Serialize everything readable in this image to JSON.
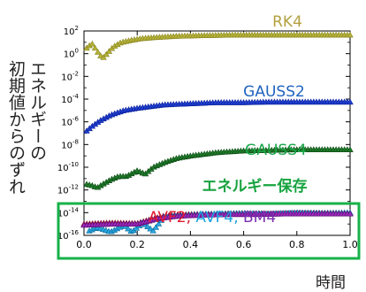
{
  "chart_data": {
    "type": "scatter",
    "x_range": [
      0,
      1
    ],
    "ylim_exp": [
      -16,
      2
    ],
    "log_y": true,
    "xlabel": "時間",
    "ylabel_lines": [
      "エネルギーの",
      "初期値からのずれ"
    ],
    "x_ticks": [
      "0.0",
      "0.2",
      "0.4",
      "0.6",
      "0.8",
      "1.0"
    ],
    "y_ticks": [
      {
        "e": 2,
        "label": "10",
        "sup": "2"
      },
      {
        "e": 0,
        "label": "10",
        "sup": "0"
      },
      {
        "e": -2,
        "label": "10",
        "sup": "-2"
      },
      {
        "e": -4,
        "label": "10",
        "sup": "-4"
      },
      {
        "e": -6,
        "label": "10",
        "sup": "-6"
      },
      {
        "e": -8,
        "label": "10",
        "sup": "-8"
      },
      {
        "e": -10,
        "label": "10",
        "sup": "-10"
      },
      {
        "e": -12,
        "label": "10",
        "sup": "-12"
      },
      {
        "e": -14,
        "label": "10",
        "sup": "-14"
      },
      {
        "e": -16,
        "label": "10",
        "sup": "-16"
      }
    ],
    "series": [
      {
        "name": "RK4",
        "color": "#b5b23a",
        "edge": "#8a8620",
        "marker": "triangle",
        "points": [
          [
            0.01,
            0.5
          ],
          [
            0.03,
            0.9
          ],
          [
            0.05,
            0.2
          ],
          [
            0.07,
            -0.4
          ],
          [
            0.09,
            0.1
          ],
          [
            0.11,
            0.6
          ],
          [
            0.14,
            1.0
          ],
          [
            0.18,
            1.2
          ],
          [
            0.22,
            1.35
          ],
          [
            0.28,
            1.45
          ],
          [
            0.35,
            1.55
          ],
          [
            0.45,
            1.6
          ],
          [
            0.55,
            1.65
          ],
          [
            0.65,
            1.65
          ],
          [
            0.75,
            1.65
          ],
          [
            0.85,
            1.65
          ],
          [
            0.95,
            1.65
          ],
          [
            1.0,
            1.65
          ]
        ]
      },
      {
        "name": "GAUSS2",
        "color": "#1f3fcf",
        "edge": "#0a1f9a",
        "marker": "triangle",
        "points": [
          [
            0.01,
            -6.8
          ],
          [
            0.03,
            -6.4
          ],
          [
            0.06,
            -5.9
          ],
          [
            0.1,
            -5.4
          ],
          [
            0.15,
            -5.0
          ],
          [
            0.2,
            -4.8
          ],
          [
            0.3,
            -4.5
          ],
          [
            0.4,
            -4.4
          ],
          [
            0.5,
            -4.3
          ],
          [
            0.6,
            -4.3
          ],
          [
            0.7,
            -4.25
          ],
          [
            0.8,
            -4.25
          ],
          [
            0.9,
            -4.25
          ],
          [
            1.0,
            -4.25
          ]
        ]
      },
      {
        "name": "GAUSS4",
        "color": "#1f7a2a",
        "edge": "#0c4a14",
        "marker": "triangle",
        "points": [
          [
            0.01,
            -11.5
          ],
          [
            0.03,
            -11.6
          ],
          [
            0.05,
            -11.8
          ],
          [
            0.07,
            -11.5
          ],
          [
            0.1,
            -11.1
          ],
          [
            0.13,
            -10.8
          ],
          [
            0.16,
            -10.8
          ],
          [
            0.2,
            -10.3
          ],
          [
            0.23,
            -10.6
          ],
          [
            0.26,
            -10.0
          ],
          [
            0.3,
            -9.6
          ],
          [
            0.35,
            -9.2
          ],
          [
            0.4,
            -9.0
          ],
          [
            0.5,
            -8.7
          ],
          [
            0.6,
            -8.55
          ],
          [
            0.7,
            -8.5
          ],
          [
            0.8,
            -8.45
          ],
          [
            0.9,
            -8.45
          ],
          [
            1.0,
            -8.45
          ]
        ]
      },
      {
        "name": "AVF2",
        "color": "#d0243c",
        "edge": "#8a0c1e",
        "marker": "triangle",
        "points": [
          [
            0.0,
            -15.0
          ],
          [
            0.1,
            -14.9
          ],
          [
            0.2,
            -14.95
          ],
          [
            0.25,
            -14.6
          ],
          [
            0.3,
            -14.3
          ],
          [
            0.35,
            -14.2
          ],
          [
            0.4,
            -14.15
          ],
          [
            0.5,
            -14.1
          ],
          [
            0.6,
            -14.1
          ],
          [
            0.7,
            -14.1
          ],
          [
            0.8,
            -14.05
          ],
          [
            0.9,
            -14.05
          ],
          [
            1.0,
            -14.05
          ]
        ]
      },
      {
        "name": "AVF4",
        "color": "#2aa6e0",
        "edge": "#0a6a9a",
        "marker": "triangle",
        "points": [
          [
            0.02,
            -15.6
          ],
          [
            0.05,
            -15.3
          ],
          [
            0.1,
            -15.7
          ],
          [
            0.15,
            -15.1
          ],
          [
            0.18,
            -15.7
          ],
          [
            0.22,
            -14.9
          ],
          [
            0.26,
            -15.6
          ],
          [
            0.3,
            -14.4
          ],
          [
            0.4,
            -14.2
          ],
          [
            0.5,
            -14.1
          ],
          [
            0.6,
            -14.05
          ],
          [
            0.7,
            -14.1
          ],
          [
            0.8,
            -14.0
          ],
          [
            0.9,
            -14.05
          ],
          [
            1.0,
            -14.0
          ]
        ]
      },
      {
        "name": "BM4",
        "color": "#9b2bb8",
        "edge": "#5c0a78",
        "marker": "triangle",
        "points": [
          [
            0.0,
            -15.1
          ],
          [
            0.1,
            -15.0
          ],
          [
            0.2,
            -15.0
          ],
          [
            0.28,
            -14.5
          ],
          [
            0.35,
            -14.3
          ],
          [
            0.45,
            -14.2
          ],
          [
            0.55,
            -14.15
          ],
          [
            0.65,
            -14.15
          ],
          [
            0.75,
            -14.1
          ],
          [
            0.85,
            -14.1
          ],
          [
            1.0,
            -14.1
          ]
        ]
      }
    ],
    "annotations": [
      {
        "text": "RK4",
        "color": "#b3a040"
      },
      {
        "text": "GAUSS2",
        "color": "#1e63c0"
      },
      {
        "text": "GAUSS4",
        "color": "#19a64a"
      },
      {
        "text": "エネルギー保存",
        "color": "#17a33f"
      }
    ],
    "group_label": [
      {
        "text": "AVF2",
        "color": "#e0192e"
      },
      {
        "text": ", ",
        "color": "#e0192e"
      },
      {
        "text": "AVF4",
        "color": "#1aa3e0"
      },
      {
        "text": ", ",
        "color": "#1aa3e0"
      },
      {
        "text": "BM4",
        "color": "#7a2fb0"
      }
    ],
    "highlight_box_color": "#17b24a"
  }
}
